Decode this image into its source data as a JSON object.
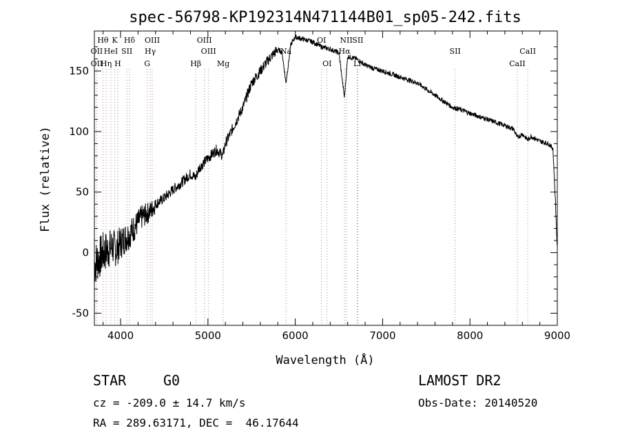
{
  "chart_data": {
    "type": "line",
    "title": "spec-56798-KP192314N471144B01_sp05-242.fits",
    "xlabel": "Wavelength (Å)",
    "ylabel": "Flux (relative)",
    "xlim": [
      3700,
      9000
    ],
    "ylim": [
      -60,
      183
    ],
    "xticks": [
      4000,
      5000,
      6000,
      7000,
      8000,
      9000
    ],
    "yticks": [
      -50,
      0,
      50,
      100,
      150
    ],
    "grid": false,
    "spectrum_anchors": {
      "x": [
        3700,
        3750,
        3800,
        3850,
        3900,
        3950,
        4000,
        4050,
        4100,
        4150,
        4200,
        4250,
        4300,
        4350,
        4400,
        4500,
        4600,
        4700,
        4800,
        4860,
        4900,
        5000,
        5100,
        5170,
        5200,
        5300,
        5400,
        5500,
        5600,
        5700,
        5800,
        5850,
        5893,
        5950,
        6000,
        6100,
        6200,
        6300,
        6400,
        6500,
        6563,
        6600,
        6700,
        6800,
        6900,
        7000,
        7200,
        7400,
        7600,
        7800,
        7900,
        8000,
        8200,
        8400,
        8500,
        8542,
        8600,
        8662,
        8700,
        8800,
        8900,
        8950,
        8980,
        9000
      ],
      "y": [
        -10,
        -5,
        0,
        2,
        5,
        3,
        8,
        12,
        15,
        20,
        25,
        30,
        32,
        35,
        40,
        45,
        52,
        58,
        65,
        62,
        70,
        78,
        85,
        80,
        90,
        105,
        120,
        140,
        150,
        160,
        168,
        165,
        140,
        172,
        178,
        176,
        174,
        170,
        168,
        165,
        128,
        162,
        160,
        155,
        152,
        150,
        145,
        140,
        130,
        120,
        118,
        115,
        110,
        105,
        102,
        95,
        98,
        93,
        96,
        92,
        90,
        86,
        40,
        0
      ],
      "noise_until": 4400
    },
    "spectral_lines": [
      {
        "name": "Hθ",
        "x": 3798,
        "row": 0
      },
      {
        "name": "K",
        "x": 3934,
        "row": 0
      },
      {
        "name": "Hδ",
        "x": 4102,
        "row": 0
      },
      {
        "name": "OIII",
        "x": 4363,
        "row": 0
      },
      {
        "name": "OIII",
        "x": 4959,
        "row": 0
      },
      {
        "name": "OI",
        "x": 6300,
        "row": 0
      },
      {
        "name": "NII",
        "x": 6583,
        "row": 0
      },
      {
        "name": "SII",
        "x": 6716,
        "row": 0
      },
      {
        "name": "OII",
        "x": 3727,
        "row": 1
      },
      {
        "name": "HeI",
        "x": 3889,
        "row": 1
      },
      {
        "name": "SII",
        "x": 4072,
        "row": 1
      },
      {
        "name": "Hγ",
        "x": 4340,
        "row": 1
      },
      {
        "name": "OIII",
        "x": 5007,
        "row": 1
      },
      {
        "name": "Na",
        "x": 5893,
        "row": 1
      },
      {
        "name": "Hα",
        "x": 6563,
        "row": 1
      },
      {
        "name": "SII",
        "x": 7830,
        "row": 1
      },
      {
        "name": "CaII",
        "x": 8662,
        "row": 1
      },
      {
        "name": "OII",
        "x": 3727,
        "row": 2
      },
      {
        "name": "Hη",
        "x": 3835,
        "row": 2
      },
      {
        "name": "H",
        "x": 3968,
        "row": 2
      },
      {
        "name": "G",
        "x": 4305,
        "row": 2
      },
      {
        "name": "Hβ",
        "x": 4861,
        "row": 2
      },
      {
        "name": "Mg",
        "x": 5175,
        "row": 2
      },
      {
        "name": "OI",
        "x": 6364,
        "row": 2
      },
      {
        "name": "Li",
        "x": 6708,
        "row": 2
      },
      {
        "name": "CaII",
        "x": 8542,
        "row": 2
      }
    ]
  },
  "info": {
    "class": "STAR",
    "subclass": "G0",
    "survey": "LAMOST DR2",
    "cz": "cz = -209.0 ± 14.7 km/s",
    "obs_date": "Obs-Date: 20140520",
    "coords": "RA = 289.63171, DEC =  46.17644"
  }
}
